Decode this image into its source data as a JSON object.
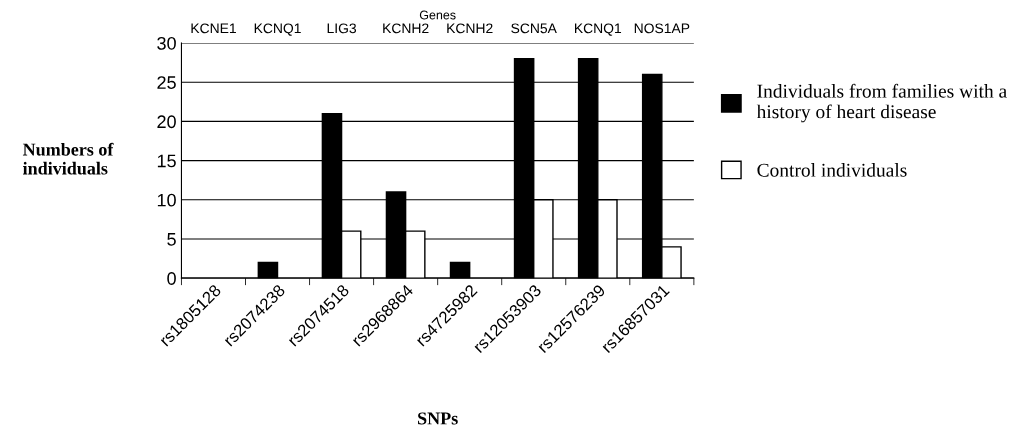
{
  "chart_data": {
    "type": "bar",
    "categories": [
      "rs1805128",
      "rs2074238",
      "rs2074518",
      "rs2968864",
      "rs4725982",
      "rs12053903",
      "rs12576239",
      "rs16857031"
    ],
    "annotations": [
      "Genes",
      "KCNE1",
      "KCNQ1",
      "LIG3",
      "KCNH2",
      "KCNH2",
      "SCN5A",
      "KCNQ1",
      "NOS1AP"
    ],
    "xlabel": "SNPs",
    "ylabel": "Numbers of\nindividuals",
    "series": [
      {
        "name": "Individuals from families with a\nhistory of heart disease",
        "color": "#000000",
        "values": [
          0,
          2,
          21,
          11,
          2,
          28,
          28,
          26
        ]
      },
      {
        "name": "Control individuals",
        "color": "#ffffff",
        "values": [
          0,
          0,
          6,
          6,
          0,
          10,
          10,
          4
        ]
      }
    ],
    "ylim": [
      0,
      30
    ],
    "yticks": [
      0,
      5,
      10,
      15,
      20,
      25,
      30
    ],
    "grid": "y",
    "legend": "right"
  }
}
